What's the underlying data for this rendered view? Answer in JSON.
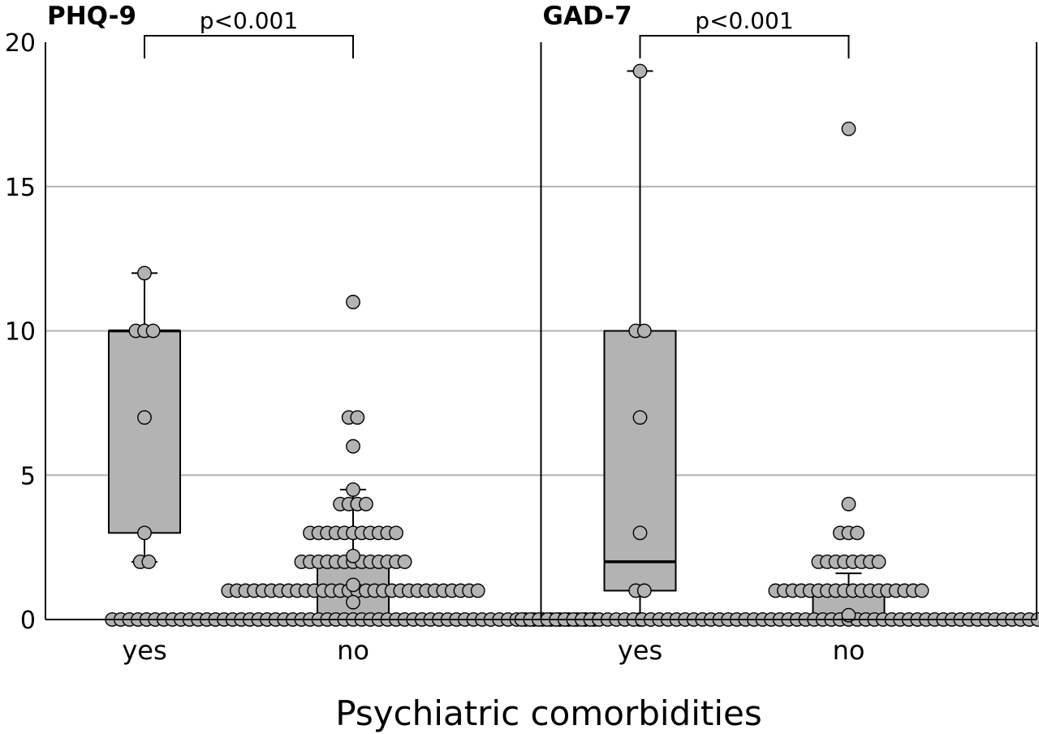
{
  "chart_data": {
    "type": "box",
    "xlabel": "Psychiatric comorbidities",
    "ylabel": "",
    "ylim": [
      0,
      20
    ],
    "yticks": [
      "0",
      "5",
      "10",
      "15",
      "20"
    ],
    "grid": true,
    "categories": [
      "yes",
      "no"
    ],
    "colors": {
      "box": "#b3b3b3",
      "point": "#b3b3b3",
      "line": "#000000",
      "grid": "#b3b3b3"
    },
    "panels": [
      {
        "title": "PHQ-9",
        "significance": "p<0.001",
        "groups": [
          {
            "category": "yes",
            "q1": 3,
            "median": 10,
            "q3": 10,
            "whisker_low": 2,
            "whisker_high": 12,
            "points": [
              12,
              10,
              10,
              10,
              7,
              3,
              2,
              2
            ]
          },
          {
            "category": "no",
            "q1": 0,
            "median": 0,
            "q3": 2,
            "whisker_low": 0,
            "whisker_high": 4.5,
            "points": [
              11,
              7,
              7,
              6,
              4.5,
              4,
              4,
              4,
              4,
              3,
              3,
              3,
              3,
              3,
              3,
              3,
              3,
              3,
              3,
              3,
              2.2,
              2,
              2,
              2,
              2,
              2,
              2,
              2,
              2,
              2,
              2,
              2,
              2,
              2,
              1.2,
              1,
              1,
              1,
              1,
              1,
              1,
              1,
              1,
              1,
              1,
              1,
              1,
              1,
              1,
              1,
              1,
              1,
              1,
              1,
              1,
              1,
              1,
              1,
              1,
              1,
              1,
              1,
              1,
              1,
              1,
              0.6,
              0,
              0,
              0,
              0,
              0,
              0,
              0,
              0,
              0,
              0,
              0,
              0,
              0,
              0,
              0,
              0,
              0,
              0,
              0,
              0,
              0,
              0,
              0,
              0,
              0,
              0,
              0,
              0,
              0,
              0,
              0,
              0,
              0,
              0,
              0,
              0,
              0,
              0,
              0,
              0,
              0,
              0,
              0,
              0,
              0,
              0,
              0,
              0,
              0,
              0,
              0,
              0,
              0,
              0,
              0,
              0,
              0
            ]
          }
        ]
      },
      {
        "title": "GAD-7",
        "significance": "p<0.001",
        "groups": [
          {
            "category": "yes",
            "q1": 1,
            "median": 2,
            "q3": 10,
            "whisker_low": 0,
            "whisker_high": 19,
            "points": [
              19,
              10,
              10,
              7,
              3,
              1,
              1,
              0
            ]
          },
          {
            "category": "no",
            "q1": 0,
            "median": 0,
            "q3": 1,
            "whisker_low": 0,
            "whisker_high": 1.6,
            "points": [
              17,
              4,
              3,
              3,
              3,
              2,
              2,
              2,
              2,
              2,
              2,
              2,
              2,
              1,
              1,
              1,
              1,
              1,
              1,
              1,
              1,
              1,
              1,
              1,
              1,
              1,
              1,
              1,
              1,
              1,
              1,
              0.15,
              0,
              0,
              0,
              0,
              0,
              0,
              0,
              0,
              0,
              0,
              0,
              0,
              0,
              0,
              0,
              0,
              0,
              0,
              0,
              0,
              0,
              0,
              0,
              0,
              0,
              0,
              0,
              0,
              0,
              0,
              0,
              0,
              0,
              0,
              0,
              0,
              0,
              0,
              0,
              0,
              0,
              0,
              0,
              0,
              0,
              0,
              0,
              0,
              0,
              0,
              0,
              0,
              0,
              0,
              0,
              0,
              0,
              0,
              0,
              0,
              0,
              0,
              0,
              0,
              0,
              0,
              0,
              0,
              0,
              0,
              0,
              0,
              0,
              0,
              0,
              0,
              0
            ]
          }
        ]
      }
    ]
  }
}
